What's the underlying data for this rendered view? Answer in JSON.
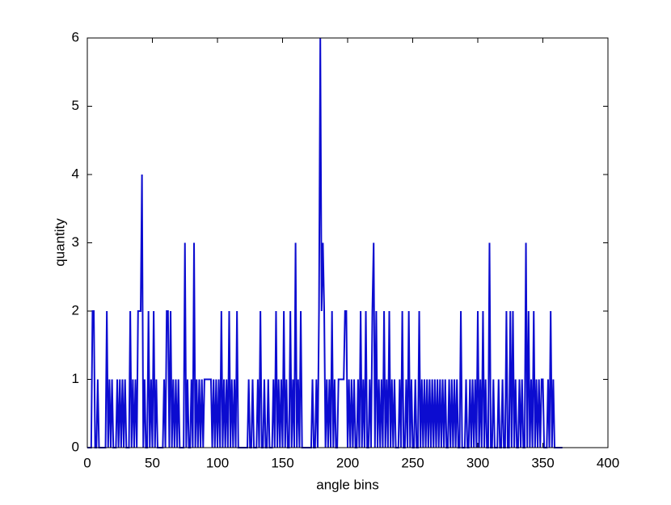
{
  "chart_data": {
    "type": "line",
    "xlabel": "angle bins",
    "ylabel": "quantity",
    "xlim": [
      0,
      400
    ],
    "xticks": [
      0,
      50,
      100,
      150,
      200,
      250,
      300,
      350,
      400
    ],
    "ylim": [
      0,
      6
    ],
    "yticks": [
      0,
      1,
      2,
      3,
      4,
      5,
      6
    ],
    "grid": false,
    "series": [
      {
        "color": "#0c0cd0",
        "x": [
          0,
          1,
          2,
          3,
          4,
          5,
          6,
          7,
          8,
          9,
          10,
          11,
          12,
          13,
          14,
          15,
          16,
          17,
          18,
          19,
          20,
          21,
          22,
          23,
          24,
          25,
          26,
          27,
          28,
          29,
          30,
          31,
          32,
          33,
          34,
          35,
          36,
          37,
          38,
          39,
          40,
          41,
          42,
          43,
          44,
          45,
          46,
          47,
          48,
          49,
          50,
          51,
          52,
          53,
          54,
          55,
          56,
          57,
          58,
          59,
          60,
          61,
          62,
          63,
          64,
          65,
          66,
          67,
          68,
          69,
          70,
          71,
          72,
          73,
          74,
          75,
          76,
          77,
          78,
          79,
          80,
          81,
          82,
          83,
          84,
          85,
          86,
          87,
          88,
          89,
          90,
          91,
          92,
          93,
          94,
          95,
          96,
          97,
          98,
          99,
          100,
          101,
          102,
          103,
          104,
          105,
          106,
          107,
          108,
          109,
          110,
          111,
          112,
          113,
          114,
          115,
          116,
          117,
          118,
          119,
          120,
          121,
          122,
          123,
          124,
          125,
          126,
          127,
          128,
          129,
          130,
          131,
          132,
          133,
          134,
          135,
          136,
          137,
          138,
          139,
          140,
          141,
          142,
          143,
          144,
          145,
          146,
          147,
          148,
          149,
          150,
          151,
          152,
          153,
          154,
          155,
          156,
          157,
          158,
          159,
          160,
          161,
          162,
          163,
          164,
          165,
          166,
          167,
          168,
          169,
          170,
          171,
          172,
          173,
          174,
          175,
          176,
          177,
          178,
          179,
          180,
          181,
          182,
          183,
          184,
          185,
          186,
          187,
          188,
          189,
          190,
          191,
          192,
          193,
          194,
          195,
          196,
          197,
          198,
          199,
          200,
          201,
          202,
          203,
          204,
          205,
          206,
          207,
          208,
          209,
          210,
          211,
          212,
          213,
          214,
          215,
          216,
          217,
          218,
          219,
          220,
          221,
          222,
          223,
          224,
          225,
          226,
          227,
          228,
          229,
          230,
          231,
          232,
          233,
          234,
          235,
          236,
          237,
          238,
          239,
          240,
          241,
          242,
          243,
          244,
          245,
          246,
          247,
          248,
          249,
          250,
          251,
          252,
          253,
          254,
          255,
          256,
          257,
          258,
          259,
          260,
          261,
          262,
          263,
          264,
          265,
          266,
          267,
          268,
          269,
          270,
          271,
          272,
          273,
          274,
          275,
          276,
          277,
          278,
          279,
          280,
          281,
          282,
          283,
          284,
          285,
          286,
          287,
          288,
          289,
          290,
          291,
          292,
          293,
          294,
          295,
          296,
          297,
          298,
          299,
          300,
          301,
          302,
          303,
          304,
          305,
          306,
          307,
          308,
          309,
          310,
          311,
          312,
          313,
          314,
          315,
          316,
          317,
          318,
          319,
          320,
          321,
          322,
          323,
          324,
          325,
          326,
          327,
          328,
          329,
          330,
          331,
          332,
          333,
          334,
          335,
          336,
          337,
          338,
          339,
          340,
          341,
          342,
          343,
          344,
          345,
          346,
          347,
          348,
          349,
          350,
          351,
          352,
          353,
          354,
          355,
          356,
          357,
          358,
          359,
          360,
          361,
          362,
          363,
          364,
          365
        ],
        "values": [
          0,
          0,
          0,
          0,
          2,
          2,
          0,
          0,
          1,
          0,
          0,
          0,
          0,
          0,
          0,
          2,
          0,
          1,
          0,
          1,
          0,
          0,
          0,
          1,
          0,
          1,
          0,
          1,
          0,
          1,
          0,
          0,
          0,
          2,
          0,
          1,
          0,
          1,
          0,
          2,
          2,
          2,
          4,
          0,
          1,
          0,
          0,
          2,
          0,
          1,
          0,
          2,
          0,
          1,
          0,
          0,
          0,
          0,
          0,
          1,
          0,
          2,
          2,
          0,
          2,
          0,
          1,
          0,
          1,
          0,
          1,
          0,
          0,
          0,
          0,
          3,
          0,
          1,
          0,
          0,
          1,
          0,
          3,
          0,
          1,
          0,
          1,
          0,
          1,
          0,
          1,
          1,
          1,
          1,
          1,
          1,
          0,
          1,
          0,
          1,
          0,
          1,
          0,
          2,
          0,
          1,
          0,
          1,
          0,
          2,
          0,
          1,
          0,
          1,
          0,
          2,
          0,
          0,
          0,
          0,
          0,
          0,
          0,
          0,
          1,
          0,
          0,
          1,
          0,
          0,
          0,
          1,
          0,
          2,
          0,
          0,
          1,
          0,
          0,
          1,
          0,
          0,
          0,
          1,
          0,
          2,
          0,
          1,
          0,
          1,
          0,
          2,
          0,
          1,
          0,
          0,
          2,
          0,
          1,
          0,
          3,
          0,
          1,
          0,
          2,
          0,
          0,
          0,
          0,
          0,
          0,
          0,
          0,
          1,
          0,
          0,
          1,
          0,
          2,
          6,
          2,
          3,
          2,
          0,
          1,
          0,
          1,
          0,
          2,
          0,
          1,
          0,
          0,
          1,
          1,
          1,
          1,
          1,
          2,
          2,
          0,
          1,
          0,
          1,
          0,
          1,
          0,
          0,
          1,
          0,
          2,
          0,
          1,
          0,
          2,
          0,
          0,
          1,
          0,
          2,
          3,
          0,
          2,
          0,
          1,
          0,
          1,
          0,
          2,
          0,
          1,
          0,
          2,
          0,
          1,
          0,
          1,
          0,
          0,
          0,
          1,
          0,
          2,
          0,
          0,
          1,
          0,
          2,
          0,
          1,
          0,
          0,
          1,
          0,
          0,
          2,
          0,
          1,
          0,
          1,
          0,
          1,
          0,
          1,
          0,
          1,
          0,
          1,
          0,
          1,
          0,
          1,
          0,
          1,
          0,
          1,
          0,
          0,
          1,
          0,
          1,
          0,
          1,
          0,
          1,
          0,
          0,
          2,
          0,
          0,
          0,
          1,
          0,
          0,
          1,
          0,
          1,
          0,
          1,
          0,
          2,
          0,
          1,
          0,
          2,
          0,
          1,
          0,
          0,
          3,
          0,
          0,
          1,
          0,
          0,
          0,
          1,
          0,
          0,
          1,
          0,
          0,
          2,
          0,
          0,
          2,
          0,
          2,
          0,
          1,
          0,
          0,
          1,
          0,
          1,
          0,
          0,
          3,
          0,
          2,
          0,
          1,
          0,
          2,
          0,
          1,
          0,
          1,
          0,
          1,
          1,
          0,
          0,
          0,
          1,
          0,
          2,
          0,
          1,
          0,
          0,
          0,
          0,
          0,
          0,
          0
        ]
      }
    ]
  }
}
